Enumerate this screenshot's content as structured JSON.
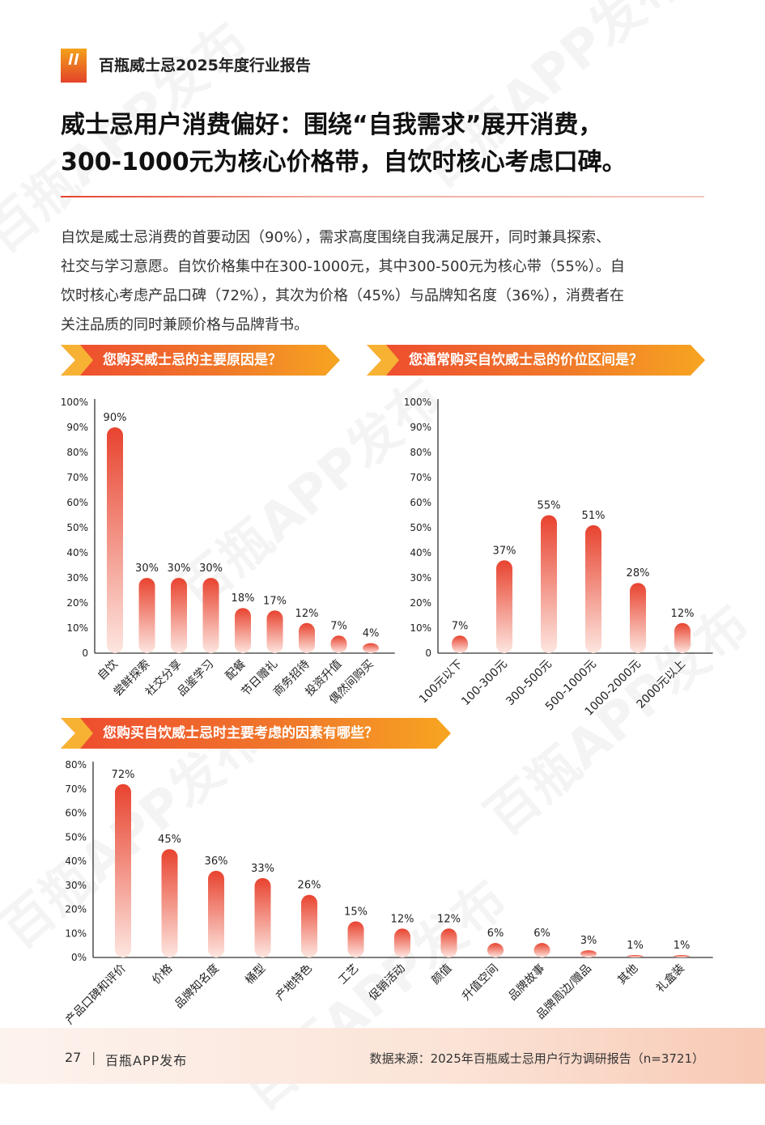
{
  "header": {
    "report_title": "百瓶威士忌2025年度行业报告"
  },
  "headline": {
    "line1": "威士忌用户消费偏好：围绕“自我需求”展开消费，",
    "line2": "300-1000元为核心价格带，自饮时核心考虑口碑。"
  },
  "summary": [
    "自饮是威士忌消费的首要动因（90%），需求高度围绕自我满足展开，同时兼具探索、",
    "社交与学习意愿。自饮价格集中在300-1000元，其中300-500元为核心带（55%）。自",
    "饮时核心考虑产品口碑（72%），其次为价格（45%）与品牌知名度（36%），消费者在",
    "关注品质的同时兼顾价格与品牌背书。"
  ],
  "colors": {
    "bar_top": "#e8432f",
    "bar_bottom": "#fde6e0",
    "accent_orange": "#f7a521"
  },
  "watermark_text": "百瓶APP发布",
  "chart_data": [
    {
      "type": "bar",
      "title": "您购买威士忌的主要原因是？",
      "categories": [
        "自饮",
        "尝鲜探索",
        "社交分享",
        "品鉴学习",
        "配餐",
        "节日赠礼",
        "商务招待",
        "投资升值",
        "偶然间购买"
      ],
      "values": [
        90,
        30,
        30,
        30,
        18,
        17,
        12,
        7,
        4
      ],
      "value_labels": [
        "90%",
        "30%",
        "30%",
        "30%",
        "18%",
        "17%",
        "12%",
        "7%",
        "4%"
      ],
      "ylim": [
        0,
        100
      ],
      "yticks": [
        "0",
        "10%",
        "20%",
        "30%",
        "40%",
        "50%",
        "60%",
        "70%",
        "80%",
        "90%",
        "100%"
      ],
      "grid": false
    },
    {
      "type": "bar",
      "title": "您通常购买自饮威士忌的价位区间是？",
      "categories": [
        "100元以下",
        "100-300元",
        "300-500元",
        "500-1000元",
        "1000-2000元",
        "2000元以上"
      ],
      "values": [
        7,
        37,
        55,
        51,
        28,
        12
      ],
      "value_labels": [
        "7%",
        "37%",
        "55%",
        "51%",
        "28%",
        "12%"
      ],
      "ylim": [
        0,
        100
      ],
      "yticks": [
        "0",
        "10%",
        "20%",
        "30%",
        "40%",
        "50%",
        "60%",
        "70%",
        "80%",
        "90%",
        "100%"
      ],
      "grid": false
    },
    {
      "type": "bar",
      "title": "您购买自饮威士忌时主要考虑的因素有哪些？",
      "categories": [
        "产品口碑和评价",
        "价格",
        "品牌知名度",
        "桶型",
        "产地特色",
        "工艺",
        "促销活动",
        "颜值",
        "升值空间",
        "品牌故事",
        "品牌周边/赠品",
        "其他",
        "礼盒装"
      ],
      "values": [
        72,
        45,
        36,
        33,
        26,
        15,
        12,
        12,
        6,
        6,
        3,
        1,
        1
      ],
      "value_labels": [
        "72%",
        "45%",
        "36%",
        "33%",
        "26%",
        "15%",
        "12%",
        "12%",
        "6%",
        "6%",
        "3%",
        "1%",
        "1%"
      ],
      "ylim": [
        0,
        80
      ],
      "yticks": [
        "0%",
        "10%",
        "20%",
        "30%",
        "40%",
        "50%",
        "60%",
        "70%",
        "80%"
      ],
      "grid": false
    }
  ],
  "footer": {
    "page_number": "27",
    "separator": "|",
    "publisher": "百瓶APP发布",
    "source": "数据来源：2025年百瓶威士忌用户行为调研报告（n=3721）"
  }
}
